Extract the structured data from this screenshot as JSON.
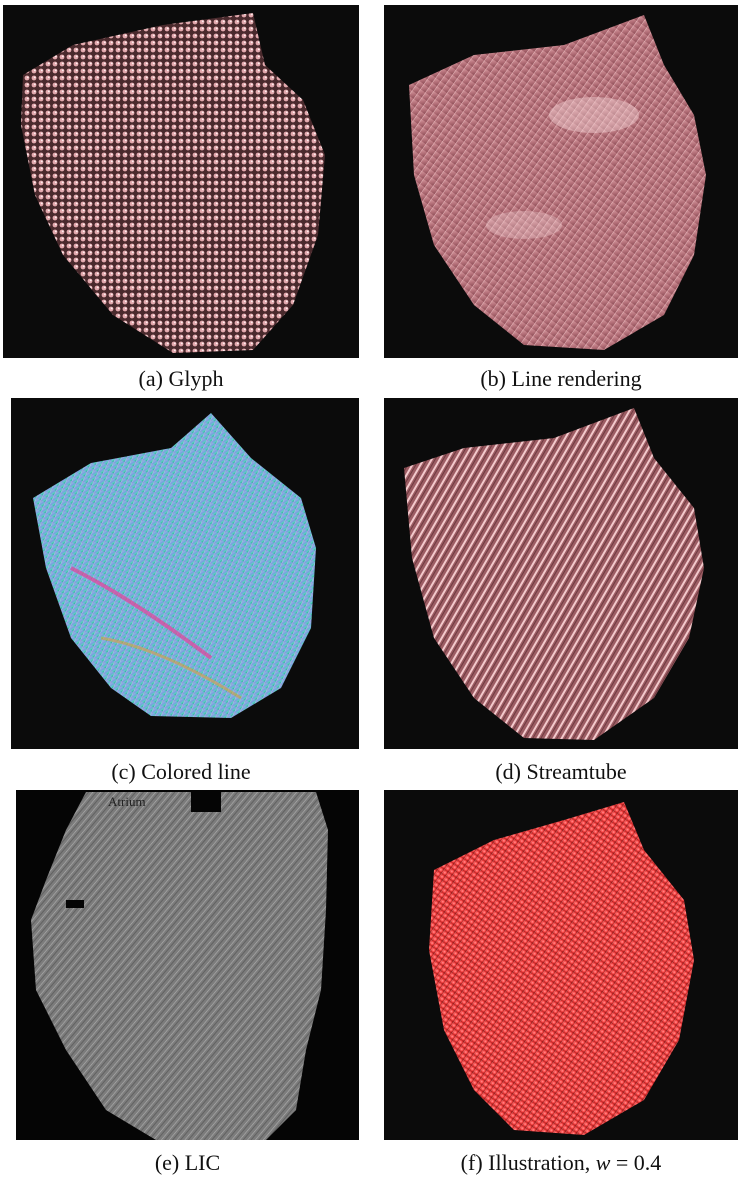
{
  "panels": [
    {
      "id": "a",
      "caption": "(a) Glyph"
    },
    {
      "id": "b",
      "caption": "(b) Line rendering"
    },
    {
      "id": "c",
      "caption": "(c) Colored line"
    },
    {
      "id": "d",
      "caption": "(d) Streamtube"
    },
    {
      "id": "e",
      "caption": "(e) LIC",
      "annotation": "Atrium"
    },
    {
      "id": "f",
      "caption_prefix": "(f) Illustration, ",
      "caption_var": "w",
      "caption_suffix": " = 0.4"
    }
  ],
  "colors": {
    "background": "#0b0b0b",
    "glyph_pink": "#d99aa0",
    "line_pink": "#c47f86",
    "tube_pink": "#e6b3b6",
    "lic_gray": "#8a8a8a",
    "illustration_red": "#ff3b3b"
  }
}
